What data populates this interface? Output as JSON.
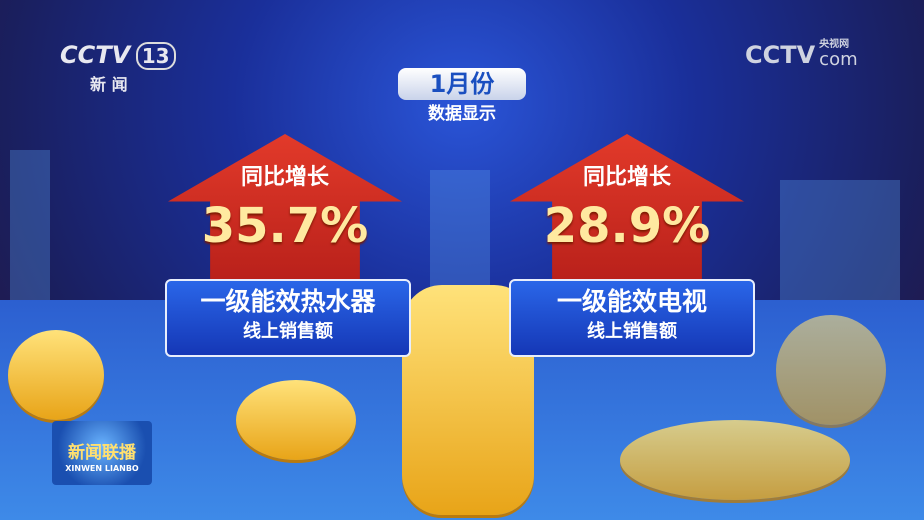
{
  "channel_logo": {
    "brand": "CCTV",
    "number": "13",
    "name": "新 闻"
  },
  "site_logo": {
    "brand": "CCTV",
    "suffix": "com",
    "cn": "央视网"
  },
  "header": {
    "month": "1月份",
    "subtitle": "数据显示"
  },
  "stats": [
    {
      "label": "同比增长",
      "value": "35.7%",
      "title": "一级能效热水器",
      "subtitle": "线上销售额"
    },
    {
      "label": "同比增长",
      "value": "28.9%",
      "title": "一级能效电视",
      "subtitle": "线上销售额"
    }
  ],
  "program_logo": {
    "cn": "新闻联播",
    "pinyin": "XINWEN LIANBO"
  },
  "colors": {
    "arrow": "#d8302a",
    "card": "#1e4fd0",
    "value": "#ffe9a0"
  }
}
